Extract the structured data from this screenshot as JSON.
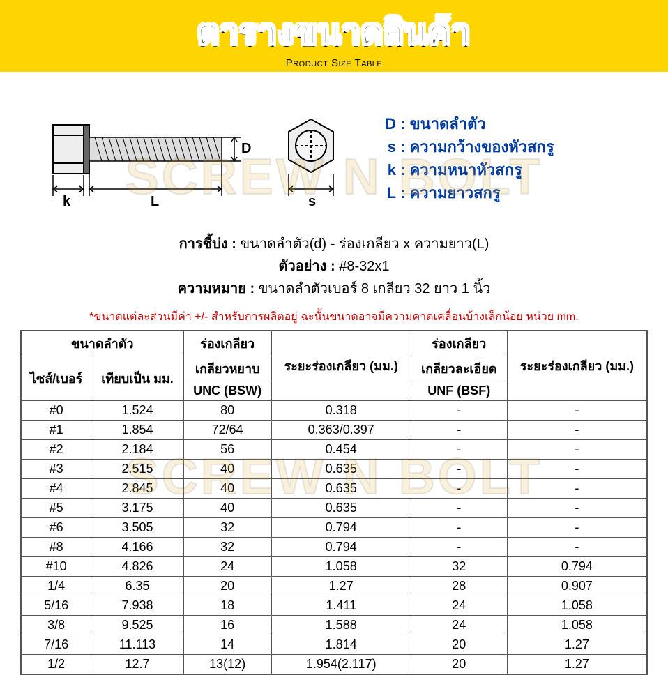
{
  "header": {
    "title_th": "ตารางขนาดสินค้า",
    "title_en": "Product Size Table"
  },
  "watermark": "SCREW N BOLT",
  "legend": {
    "items": [
      {
        "key": "D",
        "label": "ขนาดลำตัว"
      },
      {
        "key": "s",
        "label": "ความกว้างของหัวสกรู"
      },
      {
        "key": "k",
        "label": "ความหนาหัวสกรู"
      },
      {
        "key": "L",
        "label": "ความยาวสกรู"
      }
    ],
    "color": "#003a9e",
    "fontsize": 22
  },
  "diagram": {
    "labels": {
      "d": "D",
      "s": "s",
      "k": "k",
      "l": "L"
    }
  },
  "notation": {
    "spec_label": "การชี้บ่ง :",
    "spec_text": "ขนาดลำตัว(d) - ร่องเกลียว x ความยาว(L)",
    "ex_label": "ตัวอย่าง :",
    "ex_text": "#8-32x1",
    "meaning_label": "ความหมาย :",
    "meaning_text": "ขนาดลำตัวเบอร์ 8 เกลียว 32 ยาว 1 นิ้ว"
  },
  "note": "*ขนาดแต่ละส่วนมีค่า +/- สำหรับการผลิตอยู่ ฉะนั้นขนาดอาจมีความคาดเคลื่อนบ้างเล็กน้อย หน่วย mm.",
  "table": {
    "header_group1": "ขนาดลำตัว",
    "header_col1": "ไซส์/เบอร์",
    "header_col2": "เทียบเป็น มม.",
    "header_group2a": "ร่องเกลียว",
    "header_group2b": "เกลียวหยาบ",
    "header_group2c": "UNC (BSW)",
    "header_col4": "ระยะร่องเกลียว (มม.)",
    "header_group3a": "ร่องเกลียว",
    "header_group3b": "เกลียวละเอียด",
    "header_group3c": "UNF (BSF)",
    "header_col6": "ระยะร่องเกลียว (มม.)",
    "rows": [
      [
        "#0",
        "1.524",
        "80",
        "0.318",
        "-",
        "-"
      ],
      [
        "#1",
        "1.854",
        "72/64",
        "0.363/0.397",
        "-",
        "-"
      ],
      [
        "#2",
        "2.184",
        "56",
        "0.454",
        "-",
        "-"
      ],
      [
        "#3",
        "2.515",
        "40",
        "0.635",
        "-",
        "-"
      ],
      [
        "#4",
        "2.845",
        "40",
        "0.635",
        "-",
        "-"
      ],
      [
        "#5",
        "3.175",
        "40",
        "0.635",
        "-",
        "-"
      ],
      [
        "#6",
        "3.505",
        "32",
        "0.794",
        "-",
        "-"
      ],
      [
        "#8",
        "4.166",
        "32",
        "0.794",
        "-",
        "-"
      ],
      [
        "#10",
        "4.826",
        "24",
        "1.058",
        "32",
        "0.794"
      ],
      [
        "1/4",
        "6.35",
        "20",
        "1.27",
        "28",
        "0.907"
      ],
      [
        "5/16",
        "7.938",
        "18",
        "1.411",
        "24",
        "1.058"
      ],
      [
        "3/8",
        "9.525",
        "16",
        "1.588",
        "24",
        "1.058"
      ],
      [
        "7/16",
        "11.113",
        "14",
        "1.814",
        "20",
        "1.27"
      ],
      [
        "1/2",
        "12.7",
        "13(12)",
        "1.954(2.117)",
        "20",
        "1.27"
      ]
    ]
  },
  "style": {
    "band_color": "#ffd500",
    "legend_color": "#003a9e",
    "note_color": "#d10000",
    "border_color": "#555555",
    "background_color": "#ffffff",
    "title_fontsize": 48,
    "body_fontsize": 18
  }
}
